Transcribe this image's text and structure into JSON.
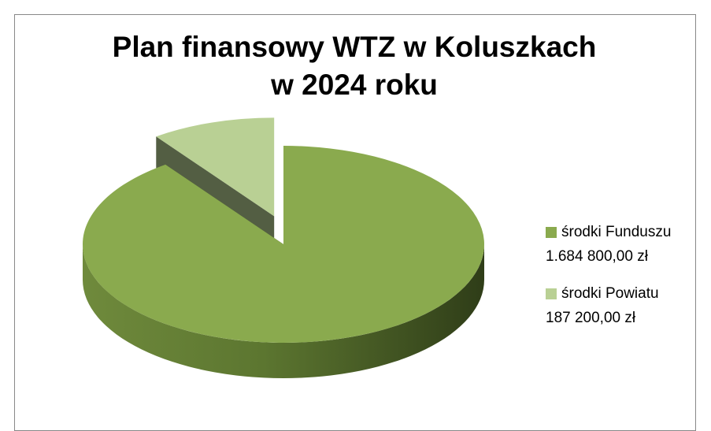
{
  "chart_data": {
    "type": "pie3d",
    "title": [
      "Plan finansowy WTZ w Koluszkach",
      "w 2024 roku"
    ],
    "categories": [
      "środki Funduszu",
      "środki Powiatu"
    ],
    "values": [
      1684800,
      187200
    ],
    "value_labels": [
      "1.684 800,00 zł",
      "187 200,00 zł"
    ],
    "colors": [
      "#8aaa4e",
      "#b9d094"
    ],
    "legend": "right"
  }
}
